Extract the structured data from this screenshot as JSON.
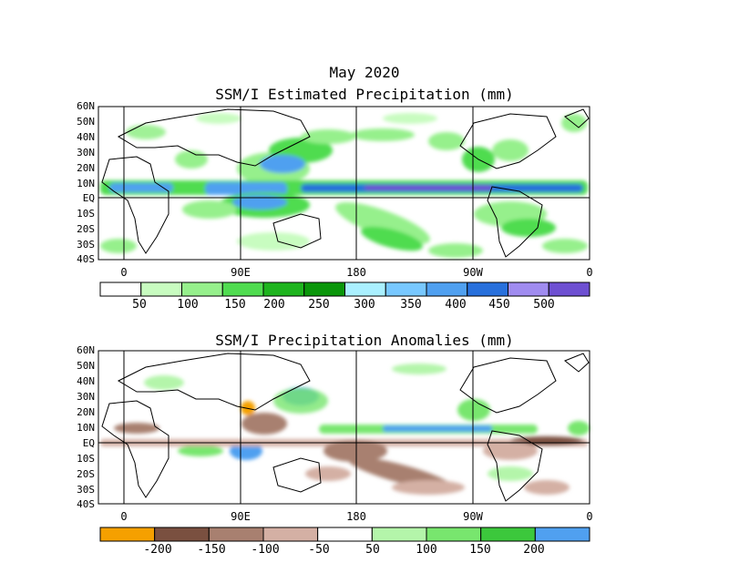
{
  "month_title": "May 2020",
  "panels": [
    {
      "title": "SSM/I Estimated Precipitation (mm)",
      "lat_labels": [
        "60N",
        "50N",
        "40N",
        "30N",
        "20N",
        "10N",
        "EQ",
        "10S",
        "20S",
        "30S",
        "40S"
      ],
      "lon_labels": [
        "0",
        "90E",
        "180",
        "90W",
        "0"
      ],
      "colorbar": {
        "colors": [
          "#ffffff",
          "#c8fcc0",
          "#96f08c",
          "#50dc50",
          "#1eb41e",
          "#0a960a",
          "#aaf0ff",
          "#78c8ff",
          "#50a0f0",
          "#2870dc",
          "#a08cf0",
          "#6e50d2"
        ],
        "tick_labels": [
          "50",
          "100",
          "150",
          "200",
          "250",
          "300",
          "350",
          "400",
          "450",
          "500"
        ]
      }
    },
    {
      "title": "SSM/I Precipitation Anomalies (mm)",
      "lat_labels": [
        "60N",
        "50N",
        "40N",
        "30N",
        "20N",
        "10N",
        "EQ",
        "10S",
        "20S",
        "30S",
        "40S"
      ],
      "lon_labels": [
        "0",
        "90E",
        "180",
        "90W",
        "0"
      ],
      "colorbar": {
        "colors": [
          "#f5a000",
          "#7a5040",
          "#a88070",
          "#d4b0a4",
          "#ffffff",
          "#b4f5aa",
          "#78e66e",
          "#3cc83c",
          "#50a0f0"
        ],
        "tick_labels": [
          "-200",
          "-150",
          "-100",
          "-50",
          "50",
          "100",
          "150",
          "200"
        ]
      }
    }
  ]
}
